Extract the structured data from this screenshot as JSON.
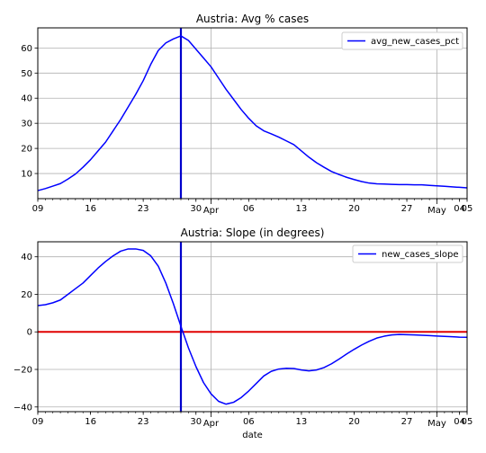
{
  "chart_data": [
    {
      "type": "line",
      "title": "Austria: Avg % cases",
      "xlabel": "",
      "ylabel": "",
      "x_ticks": [
        {
          "day": 9,
          "label": "09",
          "major": false
        },
        {
          "day": 16,
          "label": "16",
          "major": false
        },
        {
          "day": 23,
          "label": "23",
          "major": false
        },
        {
          "day": 30,
          "label": "30",
          "major": false
        },
        {
          "day": 32,
          "label": "Apr",
          "major": true
        },
        {
          "day": 37,
          "label": "06",
          "major": false
        },
        {
          "day": 44,
          "label": "13",
          "major": false
        },
        {
          "day": 51,
          "label": "20",
          "major": false
        },
        {
          "day": 58,
          "label": "27",
          "major": false
        },
        {
          "day": 62,
          "label": "May",
          "major": true
        },
        {
          "day": 65,
          "label": "04",
          "major": false
        },
        {
          "day": 66,
          "label": "05",
          "major": false
        }
      ],
      "y_ticks": [
        10,
        20,
        30,
        40,
        50,
        60
      ],
      "xlim": [
        9,
        66
      ],
      "ylim": [
        0,
        68
      ],
      "grid": true,
      "legend": "top-right",
      "series": [
        {
          "name": "avg_new_cases_pct",
          "color": "#0000ff",
          "x": [
            9,
            10,
            11,
            12,
            13,
            14,
            15,
            16,
            17,
            18,
            19,
            20,
            21,
            22,
            23,
            24,
            25,
            26,
            27,
            28,
            29,
            30,
            31,
            32,
            33,
            34,
            35,
            36,
            37,
            38,
            39,
            40,
            41,
            42,
            43,
            44,
            45,
            46,
            47,
            48,
            49,
            50,
            51,
            52,
            53,
            54,
            55,
            56,
            57,
            58,
            59,
            60,
            61,
            62,
            63,
            64,
            65,
            66
          ],
          "y": [
            3.2,
            4,
            5,
            6,
            7.8,
            9.8,
            12.5,
            15.5,
            19,
            22.5,
            27,
            31.5,
            36.5,
            41.5,
            47,
            53.5,
            59,
            62,
            63.6,
            64.8,
            63,
            59.5,
            56,
            52.5,
            48,
            43.5,
            39.5,
            35.5,
            32,
            29,
            27,
            25.8,
            24.5,
            23,
            21.5,
            19,
            16.5,
            14.3,
            12.5,
            10.8,
            9.6,
            8.5,
            7.6,
            6.8,
            6.2,
            5.9,
            5.8,
            5.7,
            5.6,
            5.6,
            5.5,
            5.5,
            5.3,
            5.1,
            4.9,
            4.7,
            4.5,
            4.3
          ]
        }
      ],
      "vlines": [
        {
          "x": 28,
          "color": "#0000cc"
        }
      ],
      "hlines": []
    },
    {
      "type": "line",
      "title": "Austria: Slope (in degrees)",
      "xlabel": "date",
      "ylabel": "",
      "x_ticks": [
        {
          "day": 9,
          "label": "09",
          "major": false
        },
        {
          "day": 16,
          "label": "16",
          "major": false
        },
        {
          "day": 23,
          "label": "23",
          "major": false
        },
        {
          "day": 30,
          "label": "30",
          "major": false
        },
        {
          "day": 32,
          "label": "Apr",
          "major": true
        },
        {
          "day": 37,
          "label": "06",
          "major": false
        },
        {
          "day": 44,
          "label": "13",
          "major": false
        },
        {
          "day": 51,
          "label": "20",
          "major": false
        },
        {
          "day": 58,
          "label": "27",
          "major": false
        },
        {
          "day": 62,
          "label": "May",
          "major": true
        },
        {
          "day": 65,
          "label": "04",
          "major": false
        },
        {
          "day": 66,
          "label": "05",
          "major": false
        }
      ],
      "y_ticks": [
        -40,
        -20,
        0,
        20,
        40
      ],
      "xlim": [
        9,
        66
      ],
      "ylim": [
        -42.5,
        48
      ],
      "grid": true,
      "legend": "top-right",
      "series": [
        {
          "name": "new_cases_slope",
          "color": "#0000ff",
          "x": [
            9,
            10,
            11,
            12,
            13,
            14,
            15,
            16,
            17,
            18,
            19,
            20,
            21,
            22,
            23,
            24,
            25,
            26,
            27,
            28,
            29,
            30,
            31,
            32,
            33,
            34,
            35,
            36,
            37,
            38,
            39,
            40,
            41,
            42,
            43,
            44,
            45,
            46,
            47,
            48,
            49,
            50,
            51,
            52,
            53,
            54,
            55,
            56,
            57,
            58,
            59,
            60,
            61,
            62,
            63,
            64,
            65,
            66
          ],
          "y": [
            14,
            14.5,
            15.5,
            17,
            20,
            23,
            26,
            30,
            34,
            37.5,
            40.5,
            43,
            44.2,
            44.2,
            43.4,
            40.5,
            35,
            26,
            15,
            3,
            -8.5,
            -18.5,
            -27,
            -33,
            -37,
            -38.5,
            -37.5,
            -35,
            -31.5,
            -27.5,
            -23.5,
            -21,
            -19.8,
            -19.4,
            -19.5,
            -20.3,
            -20.8,
            -20.3,
            -19,
            -17,
            -14.5,
            -11.8,
            -9.3,
            -7,
            -5,
            -3.3,
            -2.3,
            -1.6,
            -1.4,
            -1.5,
            -1.6,
            -1.8,
            -2,
            -2.2,
            -2.4,
            -2.6,
            -2.8,
            -2.9
          ]
        }
      ],
      "vlines": [
        {
          "x": 28,
          "color": "#0000cc"
        }
      ],
      "hlines": [
        {
          "y": 0,
          "color": "#e00000"
        }
      ]
    }
  ]
}
